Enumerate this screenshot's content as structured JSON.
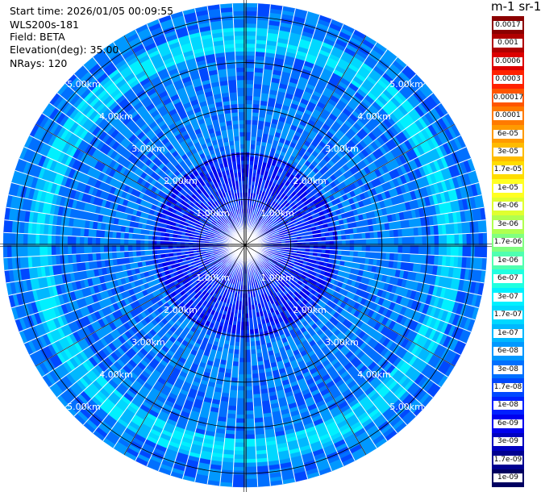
{
  "header": {
    "start_time": "Start time: 2026/01/05 00:09:55",
    "instrument": "WLS200s-181",
    "field": "Field: BETA",
    "elevation": "Elevation(deg): 35.00",
    "nrays": "NRays: 120"
  },
  "colorbar": {
    "title": "m-1 sr-1",
    "levels": [
      "0.0017",
      "0.001",
      "0.0006",
      "0.0003",
      "0.00017",
      "0.0001",
      "6e-05",
      "3e-05",
      "1.7e-05",
      "1e-05",
      "6e-06",
      "3e-06",
      "1.7e-06",
      "1e-06",
      "6e-07",
      "3e-07",
      "1.7e-07",
      "1e-07",
      "6e-08",
      "3e-08",
      "1.7e-08",
      "1e-08",
      "6e-09",
      "3e-09",
      "1.7e-09",
      "1e-09"
    ],
    "colors": [
      "#8b0000",
      "#b00000",
      "#dd0000",
      "#ff2200",
      "#ff5500",
      "#ff7a00",
      "#ff9a00",
      "#ffbb00",
      "#ffdd00",
      "#ffff22",
      "#e0ff30",
      "#b0ff50",
      "#80ff80",
      "#50ffb0",
      "#20ffe0",
      "#00f0ff",
      "#00d8ff",
      "#00b8ff",
      "#0098ff",
      "#0070ff",
      "#0048ff",
      "#0020ff",
      "#0000ee",
      "#0000c0",
      "#000090",
      "#000060"
    ]
  },
  "chart_data": {
    "type": "heatmap",
    "projection": "polar-ppi",
    "field": "BETA",
    "elevation_deg": 35.0,
    "n_rays": 120,
    "range_rings_km": [
      1,
      2,
      3,
      4,
      5
    ],
    "max_range_km": 5.3,
    "ring_labels": {
      "1": "1.00km",
      "2": "2.00km",
      "3": "3.00km",
      "4": "4.00km",
      "5": "5.00km"
    },
    "pattern": {
      "background_level": "3e-08",
      "enhanced_band_km": [
        4.2,
        4.8
      ],
      "enhanced_band_level": "1.7e-07"
    },
    "grid": true
  }
}
